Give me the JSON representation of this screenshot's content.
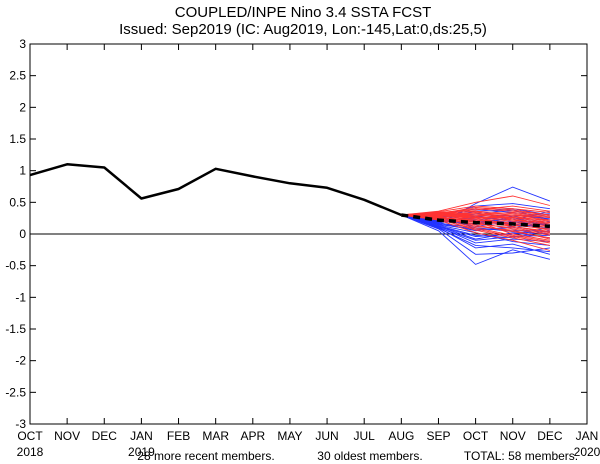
{
  "chart_data": {
    "type": "line",
    "title": "COUPLED/INPE Nino 3.4 SSTA FCST",
    "subtitle": "Issued: Sep2019 (IC: Aug2019, Lon:-145,Lat:0,ds:25,5)",
    "x_ticks": [
      "OCT",
      "NOV",
      "DEC",
      "JAN",
      "FEB",
      "MAR",
      "APR",
      "MAY",
      "JUN",
      "JUL",
      "AUG",
      "SEP",
      "OCT",
      "NOV",
      "DEC",
      "JAN"
    ],
    "year_labels": [
      {
        "text": "2018",
        "index": 0
      },
      {
        "text": "2019",
        "index": 3
      },
      {
        "text": "2020",
        "index": 15
      }
    ],
    "y_ticks": [
      "3",
      "2.5",
      "2",
      "1.5",
      "1",
      "0.5",
      "0",
      "-0.5",
      "-1",
      "-1.5",
      "-2",
      "-2.5",
      "-3"
    ],
    "ylim": [
      -3,
      3
    ],
    "observed": {
      "name": "observed",
      "color": "#000000",
      "x": [
        0,
        1,
        2,
        3,
        4,
        5,
        6,
        7,
        8,
        9,
        10
      ],
      "values": [
        0.93,
        1.1,
        1.05,
        0.56,
        0.71,
        1.03,
        0.91,
        0.8,
        0.73,
        0.54,
        0.3
      ]
    },
    "ensemble_mean": {
      "name": "ensemble mean",
      "color": "#000000",
      "x": [
        10,
        11,
        12,
        13,
        14
      ],
      "values": [
        0.3,
        0.22,
        0.18,
        0.16,
        0.12
      ]
    },
    "recent_members": {
      "name": "more recent members",
      "color": "#2233ff",
      "x": [
        10,
        11,
        12,
        13,
        14
      ],
      "members": [
        [
          0.3,
          0.05,
          -0.48,
          -0.25,
          -0.4
        ],
        [
          0.3,
          0.16,
          0.48,
          0.74,
          0.52
        ],
        [
          0.3,
          0.1,
          -0.22,
          -0.16,
          -0.32
        ],
        [
          0.3,
          0.24,
          0.4,
          0.34,
          0.28
        ],
        [
          0.3,
          0.18,
          0.05,
          0.12,
          0.02
        ],
        [
          0.3,
          0.26,
          0.32,
          0.38,
          0.22
        ],
        [
          0.3,
          0.12,
          -0.08,
          0.02,
          -0.06
        ],
        [
          0.3,
          0.2,
          0.26,
          0.22,
          0.36
        ],
        [
          0.3,
          0.14,
          0.02,
          -0.12,
          -0.18
        ],
        [
          0.3,
          0.22,
          0.15,
          0.26,
          0.12
        ],
        [
          0.3,
          0.08,
          -0.32,
          -0.3,
          -0.22
        ],
        [
          0.3,
          0.25,
          0.36,
          0.4,
          0.3
        ],
        [
          0.3,
          0.17,
          0.1,
          0.04,
          0.0
        ],
        [
          0.3,
          0.21,
          0.2,
          0.16,
          0.1
        ],
        [
          0.3,
          0.13,
          -0.02,
          -0.06,
          0.06
        ],
        [
          0.3,
          0.19,
          0.28,
          0.3,
          0.24
        ],
        [
          0.3,
          0.11,
          -0.14,
          -0.08,
          -0.12
        ],
        [
          0.3,
          0.23,
          0.12,
          0.2,
          0.16
        ],
        [
          0.3,
          0.16,
          0.06,
          0.1,
          0.2
        ],
        [
          0.3,
          0.18,
          0.22,
          0.14,
          0.08
        ],
        [
          0.3,
          0.09,
          -0.18,
          -0.22,
          -0.28
        ],
        [
          0.3,
          0.24,
          0.3,
          0.26,
          0.18
        ],
        [
          0.3,
          0.15,
          0.08,
          0.06,
          0.04
        ],
        [
          0.3,
          0.2,
          0.16,
          0.28,
          0.32
        ],
        [
          0.3,
          0.12,
          -0.04,
          0.0,
          0.1
        ],
        [
          0.3,
          0.22,
          0.24,
          0.18,
          0.14
        ],
        [
          0.3,
          0.1,
          -0.1,
          -0.04,
          -0.02
        ],
        [
          0.3,
          0.27,
          0.44,
          0.48,
          0.4
        ]
      ]
    },
    "oldest_members": {
      "name": "oldest members",
      "color": "#ff3333",
      "x": [
        10,
        11,
        12,
        13,
        14
      ],
      "members": [
        [
          0.3,
          0.36,
          0.5,
          0.6,
          0.45
        ],
        [
          0.3,
          0.32,
          0.42,
          0.38,
          0.3
        ],
        [
          0.3,
          0.3,
          0.34,
          0.3,
          0.22
        ],
        [
          0.3,
          0.34,
          0.38,
          0.44,
          0.36
        ],
        [
          0.3,
          0.28,
          0.3,
          0.26,
          0.18
        ],
        [
          0.3,
          0.26,
          0.22,
          0.18,
          0.1
        ],
        [
          0.3,
          0.33,
          0.36,
          0.32,
          0.26
        ],
        [
          0.3,
          0.29,
          0.26,
          0.2,
          0.12
        ],
        [
          0.3,
          0.31,
          0.3,
          0.24,
          0.16
        ],
        [
          0.3,
          0.27,
          0.2,
          0.12,
          0.04
        ],
        [
          0.3,
          0.35,
          0.44,
          0.4,
          0.34
        ],
        [
          0.3,
          0.3,
          0.24,
          0.16,
          0.06
        ],
        [
          0.3,
          0.28,
          0.18,
          0.08,
          -0.02
        ],
        [
          0.3,
          0.32,
          0.32,
          0.28,
          0.2
        ],
        [
          0.3,
          0.26,
          0.14,
          0.04,
          -0.06
        ],
        [
          0.3,
          0.31,
          0.28,
          0.22,
          0.14
        ],
        [
          0.3,
          0.25,
          0.1,
          -0.02,
          -0.12
        ],
        [
          0.3,
          0.33,
          0.4,
          0.36,
          0.3
        ],
        [
          0.3,
          0.29,
          0.22,
          0.14,
          0.08
        ],
        [
          0.3,
          0.24,
          0.06,
          -0.06,
          -0.18
        ],
        [
          0.3,
          0.34,
          0.3,
          0.34,
          0.28
        ],
        [
          0.3,
          0.27,
          0.16,
          0.1,
          0.0
        ],
        [
          0.3,
          0.3,
          0.26,
          0.26,
          0.22
        ],
        [
          0.3,
          0.22,
          0.02,
          -0.1,
          -0.26
        ],
        [
          0.3,
          0.32,
          0.36,
          0.22,
          0.18
        ],
        [
          0.3,
          0.28,
          0.12,
          0.06,
          -0.08
        ],
        [
          0.3,
          0.26,
          0.2,
          0.0,
          -0.1
        ],
        [
          0.3,
          0.31,
          0.24,
          0.3,
          0.26
        ],
        [
          0.3,
          0.23,
          0.08,
          -0.04,
          -0.14
        ],
        [
          0.3,
          0.29,
          0.28,
          0.12,
          0.02
        ]
      ]
    },
    "legend": {
      "recent_label": "28 more recent members.",
      "oldest_label": "30 oldest members.",
      "total_label": "TOTAL: 58 members.",
      "recent_color": "#2233ff",
      "oldest_color": "#ff3333"
    }
  }
}
